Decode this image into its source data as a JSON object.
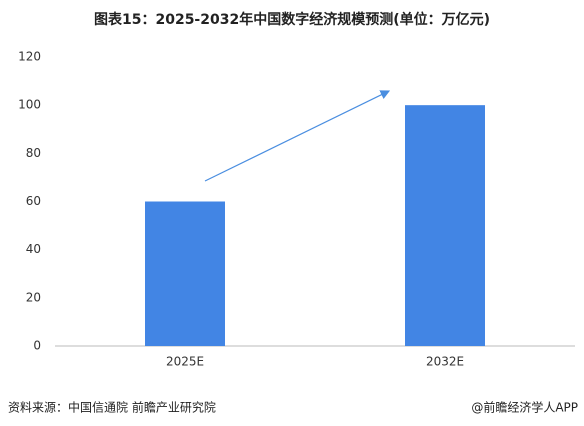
{
  "chart_data": {
    "type": "bar",
    "title": "图表15：2025-2032年中国数字经济规模预测(单位：万亿元)",
    "categories": [
      "2025E",
      "2032E"
    ],
    "values": [
      60,
      100
    ],
    "color": "#4285e4",
    "ylim": [
      0,
      120
    ],
    "yticks": [
      0,
      20,
      40,
      60,
      80,
      100,
      120
    ],
    "grid": false,
    "source": "资料来源：中国信通院 前瞻产业研究院",
    "credit": "@前瞻经济学人APP"
  }
}
